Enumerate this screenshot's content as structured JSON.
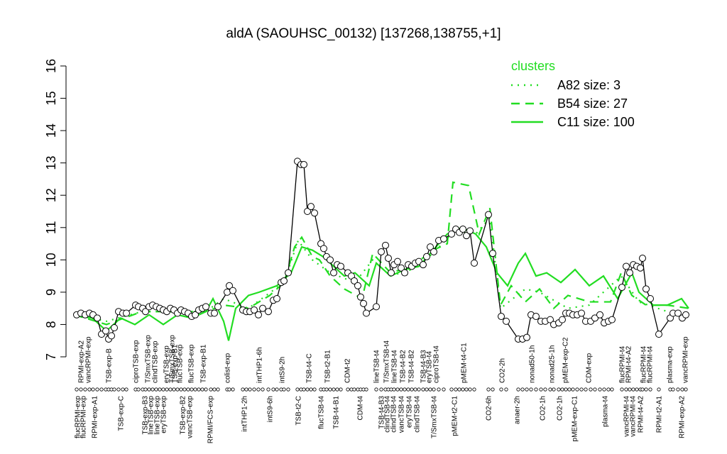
{
  "chart_data": {
    "type": "line",
    "title": "aldA (SAOUHSC_00132) [137268,138755,+1]",
    "legend_title": "clusters",
    "legend_position": "top-right",
    "xlim": [
      0,
      875
    ],
    "ylim": [
      7,
      16
    ],
    "yticks": [
      7,
      8,
      9,
      10,
      11,
      12,
      13,
      14,
      15,
      16
    ],
    "labels_top": [
      {
        "x": 15,
        "label": "RPMI-exp-A2"
      },
      {
        "x": 25,
        "label": "vancRPMI-exp"
      },
      {
        "x": 54,
        "label": "TSB-exp-B"
      },
      {
        "x": 92,
        "label": "ciproTSB-exp"
      },
      {
        "x": 109,
        "label": "T/SmxTSB-exp"
      },
      {
        "x": 119,
        "label": "clindTSB-exp"
      },
      {
        "x": 135,
        "label": "eryTSB-exp"
      },
      {
        "x": 143,
        "label": "T/SmxTSB-exp"
      },
      {
        "x": 147,
        "label": "TSB-exp-B1"
      },
      {
        "x": 154,
        "label": "flucTSB-exp"
      },
      {
        "x": 170,
        "label": "flucTSB-exp"
      },
      {
        "x": 187,
        "label": "TSB-exp-B1"
      },
      {
        "x": 221,
        "label": "colist-exp"
      },
      {
        "x": 266,
        "label": "intTHP1-6h"
      },
      {
        "x": 298,
        "label": "intS9-2h"
      },
      {
        "x": 336,
        "label": "TSB-t4-C"
      },
      {
        "x": 362,
        "label": "TSB-t2-B1"
      },
      {
        "x": 390,
        "label": "CDM-t2"
      },
      {
        "x": 431,
        "label": "lineTSB-t4"
      },
      {
        "x": 445,
        "label": "T/SmxTSB-t4"
      },
      {
        "x": 456,
        "label": "lineTSB-t4"
      },
      {
        "x": 468,
        "label": "TSB-t4-B2"
      },
      {
        "x": 480,
        "label": "TSB-t4-B2"
      },
      {
        "x": 497,
        "label": "TSB-t4-B3"
      },
      {
        "x": 505,
        "label": "eryTSB-t4"
      },
      {
        "x": 515,
        "label": "ciproTSB-t4"
      },
      {
        "x": 554,
        "label": "pMEM-t4-C1"
      },
      {
        "x": 608,
        "label": "CO2-2h"
      },
      {
        "x": 650,
        "label": "nonad50-1h"
      },
      {
        "x": 678,
        "label": "nonad25-1h"
      },
      {
        "x": 697,
        "label": "pMEM-exp-C2"
      },
      {
        "x": 730,
        "label": "CDM-exp"
      },
      {
        "x": 777,
        "label": "flucRPMI-t4"
      },
      {
        "x": 786,
        "label": "RPMI-t4-A2"
      },
      {
        "x": 807,
        "label": "flucRPMI-t4"
      },
      {
        "x": 816,
        "label": "flucRPMI-t4"
      },
      {
        "x": 844,
        "label": "plasma-exp"
      },
      {
        "x": 866,
        "label": "vancRPMI-exp"
      }
    ],
    "labels_bottom": [
      {
        "x": 10,
        "label": "flucRPMI-exp"
      },
      {
        "x": 18,
        "label": "flucRPMI-exp"
      },
      {
        "x": 34,
        "label": "RPMI-exp-A1"
      },
      {
        "x": 71,
        "label": "TSB-exp-C"
      },
      {
        "x": 105,
        "label": "TSB-exp-B3"
      },
      {
        "x": 113,
        "label": "lineTSB-exp"
      },
      {
        "x": 122,
        "label": "lineTSB-exp"
      },
      {
        "x": 131,
        "label": "eryTSB-exp"
      },
      {
        "x": 158,
        "label": "TSB-exp-B2"
      },
      {
        "x": 168,
        "label": "vancTSB-exp"
      },
      {
        "x": 197,
        "label": "RPMI/FCS-exp"
      },
      {
        "x": 245,
        "label": "intTHP1-2h"
      },
      {
        "x": 281,
        "label": "intS9-6h"
      },
      {
        "x": 321,
        "label": "TSB-t2-C"
      },
      {
        "x": 353,
        "label": "flucTSB-t4"
      },
      {
        "x": 374,
        "label": "TSB-t4-B1"
      },
      {
        "x": 408,
        "label": "CDM-t4"
      },
      {
        "x": 438,
        "label": "TSB-t4-B3"
      },
      {
        "x": 446,
        "label": "clindTSB-t4"
      },
      {
        "x": 455,
        "label": "clindTSB-t4"
      },
      {
        "x": 466,
        "label": "vancTSB-t4"
      },
      {
        "x": 477,
        "label": "eryTSB-t4"
      },
      {
        "x": 488,
        "label": "clindTSB-t4"
      },
      {
        "x": 512,
        "label": "T/SmxTSB-t4"
      },
      {
        "x": 541,
        "label": "pMEM-t2-C1"
      },
      {
        "x": 589,
        "label": "CO2-6h"
      },
      {
        "x": 629,
        "label": "anaer-2h"
      },
      {
        "x": 665,
        "label": "CO2-1h"
      },
      {
        "x": 689,
        "label": "CO2-1h"
      },
      {
        "x": 710,
        "label": "pMEM-exp-C1"
      },
      {
        "x": 753,
        "label": "plasma-t4"
      },
      {
        "x": 783,
        "label": "vancRPMI-t4"
      },
      {
        "x": 792,
        "label": "vancRPMI-t4"
      },
      {
        "x": 803,
        "label": "RPMI-t4-A2"
      },
      {
        "x": 829,
        "label": "RPMI-t2-A1"
      },
      {
        "x": 861,
        "label": "RPMI-exp-A2"
      }
    ],
    "series": [
      {
        "color": "#000000",
        "line_style": "solid",
        "markers": true,
        "x": [
          8,
          14,
          20,
          26,
          31,
          37,
          43,
          49,
          53,
          57,
          61,
          67,
          73,
          78,
          91,
          95,
          101,
          105,
          110,
          115,
          120,
          125,
          130,
          135,
          140,
          145,
          150,
          155,
          160,
          165,
          170,
          175,
          180,
          185,
          190,
          197,
          202,
          207,
          220,
          223,
          228,
          242,
          247,
          252,
          258,
          264,
          270,
          278,
          285,
          290,
          296,
          300,
          306,
          319,
          324,
          328,
          333,
          338,
          343,
          352,
          356,
          360,
          365,
          370,
          375,
          380,
          390,
          395,
          399,
          404,
          408,
          412,
          416,
          430,
          437,
          443,
          447,
          451,
          455,
          460,
          465,
          470,
          475,
          480,
          485,
          490,
          496,
          501,
          506,
          511,
          518,
          525,
          536,
          542,
          547,
          552,
          557,
          562,
          568,
          588,
          594,
          606,
          613,
          630,
          636,
          642,
          648,
          655,
          662,
          668,
          675,
          680,
          687,
          692,
          697,
          702,
          707,
          713,
          719,
          725,
          732,
          738,
          745,
          751,
          757,
          762,
          776,
          782,
          787,
          792,
          797,
          802,
          805,
          810,
          816,
          828,
          844,
          848,
          855,
          861,
          866
        ],
        "values": [
          8.3,
          8.35,
          8.3,
          8.35,
          8.3,
          8.2,
          7.7,
          7.8,
          7.55,
          7.65,
          7.9,
          8.4,
          8.35,
          8.35,
          8.6,
          8.55,
          8.5,
          8.4,
          8.55,
          8.6,
          8.55,
          8.5,
          8.45,
          8.4,
          8.5,
          8.45,
          8.35,
          8.45,
          8.4,
          8.35,
          8.25,
          8.3,
          8.45,
          8.5,
          8.55,
          8.35,
          8.35,
          8.55,
          9.0,
          9.2,
          9.05,
          8.45,
          8.4,
          8.4,
          8.45,
          8.3,
          8.5,
          8.4,
          8.75,
          8.8,
          9.3,
          9.35,
          9.6,
          13.05,
          12.95,
          12.95,
          11.5,
          11.65,
          11.45,
          10.5,
          10.35,
          10.1,
          10.0,
          9.6,
          9.85,
          9.8,
          9.6,
          9.5,
          9.35,
          9.2,
          8.85,
          8.65,
          8.35,
          8.55,
          10.25,
          10.45,
          10.05,
          9.6,
          9.85,
          9.95,
          9.75,
          9.6,
          9.85,
          9.8,
          9.9,
          9.95,
          9.85,
          10.1,
          10.4,
          10.25,
          10.6,
          10.65,
          10.8,
          10.95,
          10.85,
          10.95,
          10.75,
          10.9,
          9.9,
          11.4,
          10.2,
          8.25,
          8.1,
          7.55,
          7.55,
          7.6,
          8.3,
          8.25,
          8.1,
          8.1,
          8.15,
          8.0,
          8.05,
          8.15,
          8.35,
          8.35,
          8.3,
          8.3,
          8.35,
          8.1,
          8.1,
          8.2,
          8.3,
          8.05,
          8.1,
          8.15,
          9.15,
          9.8,
          9.6,
          9.85,
          9.8,
          9.75,
          10.05,
          9.1,
          8.8,
          7.7,
          8.2,
          8.35,
          8.35,
          8.2,
          8.3
        ]
      },
      {
        "name": "A82 size: 3",
        "color": "#22dd22",
        "line_style": "dotted",
        "markers": false,
        "x": [
          5,
          50,
          100,
          150,
          190,
          215,
          250,
          300,
          320,
          340,
          365,
          400,
          425,
          450,
          480,
          510,
          540,
          570,
          590,
          605,
          640,
          660,
          700,
          730,
          775,
          800,
          840,
          870
        ],
        "values": [
          8.3,
          8.1,
          8.4,
          8.4,
          8.4,
          8.8,
          8.5,
          9.3,
          10.6,
          10.0,
          9.6,
          9.3,
          10.0,
          9.5,
          9.7,
          10.2,
          10.9,
          10.8,
          11.3,
          8.5,
          9.1,
          9.0,
          8.5,
          8.6,
          9.5,
          8.7,
          8.4,
          8.3
        ]
      },
      {
        "name": "B54 size: 27",
        "color": "#22dd22",
        "line_style": "dashed",
        "markers": false,
        "x": [
          5,
          50,
          100,
          150,
          190,
          215,
          250,
          280,
          300,
          315,
          325,
          340,
          350,
          365,
          385,
          410,
          425,
          450,
          480,
          510,
          530,
          538,
          560,
          575,
          590,
          605,
          620,
          640,
          660,
          680,
          700,
          730,
          760,
          775,
          790,
          810,
          840,
          870
        ],
        "values": [
          8.3,
          8.0,
          8.4,
          8.4,
          8.4,
          8.6,
          8.5,
          8.9,
          9.3,
          10.4,
          10.7,
          10.1,
          10.0,
          9.5,
          9.1,
          8.8,
          10.2,
          9.6,
          9.8,
          10.3,
          10.5,
          12.4,
          12.3,
          10.8,
          11.6,
          8.6,
          9.2,
          8.7,
          9.1,
          8.5,
          8.9,
          8.7,
          8.7,
          9.6,
          8.9,
          8.6,
          8.6,
          8.5
        ]
      },
      {
        "name": "C11 size: 100",
        "color": "#22dd22",
        "line_style": "solid",
        "markers": false,
        "x": [
          5,
          30,
          50,
          70,
          90,
          110,
          130,
          150,
          170,
          190,
          200,
          215,
          222,
          232,
          250,
          265,
          290,
          310,
          325,
          340,
          355,
          370,
          385,
          400,
          420,
          430,
          450,
          470,
          490,
          510,
          530,
          550,
          570,
          585,
          600,
          615,
          630,
          640,
          655,
          670,
          690,
          710,
          730,
          750,
          770,
          790,
          800,
          820,
          840,
          860,
          870
        ],
        "values": [
          8.3,
          8.2,
          7.8,
          8.2,
          8.0,
          8.3,
          8.0,
          8.3,
          8.2,
          8.4,
          8.8,
          8.1,
          7.5,
          8.5,
          8.9,
          9.0,
          9.2,
          9.6,
          10.4,
          10.3,
          10.1,
          9.8,
          9.5,
          9.6,
          9.2,
          9.9,
          9.5,
          9.7,
          9.8,
          10.3,
          10.8,
          11.0,
          10.8,
          10.4,
          9.6,
          9.2,
          9.9,
          10.2,
          9.5,
          9.6,
          9.3,
          9.7,
          9.2,
          9.5,
          8.8,
          9.6,
          9.0,
          8.6,
          8.6,
          8.8,
          8.5
        ]
      }
    ]
  }
}
